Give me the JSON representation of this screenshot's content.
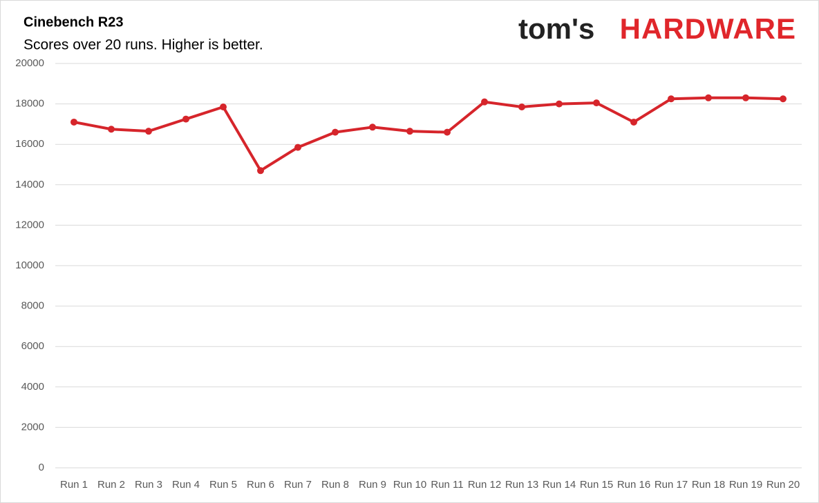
{
  "logo": {
    "prefix": "tom's",
    "name": "HARDWARE"
  },
  "chart_data": {
    "type": "line",
    "title": "Cinebench R23",
    "subtitle": "Scores over 20 runs. Higher is better.",
    "categories": [
      "Run 1",
      "Run 2",
      "Run 3",
      "Run 4",
      "Run 5",
      "Run 6",
      "Run 7",
      "Run 8",
      "Run 9",
      "Run 10",
      "Run 11",
      "Run 12",
      "Run 13",
      "Run 14",
      "Run 15",
      "Run 16",
      "Run 17",
      "Run 18",
      "Run 19",
      "Run 20"
    ],
    "values": [
      17100,
      16750,
      16650,
      17250,
      17850,
      14700,
      15850,
      16600,
      16850,
      16650,
      16600,
      18100,
      17850,
      18000,
      18050,
      17100,
      18250,
      18300,
      18300,
      18250
    ],
    "color": "#d6252b",
    "ylim": [
      0,
      20000
    ],
    "yticks": [
      0,
      2000,
      4000,
      6000,
      8000,
      10000,
      12000,
      14000,
      16000,
      18000,
      20000
    ],
    "grid": true
  }
}
